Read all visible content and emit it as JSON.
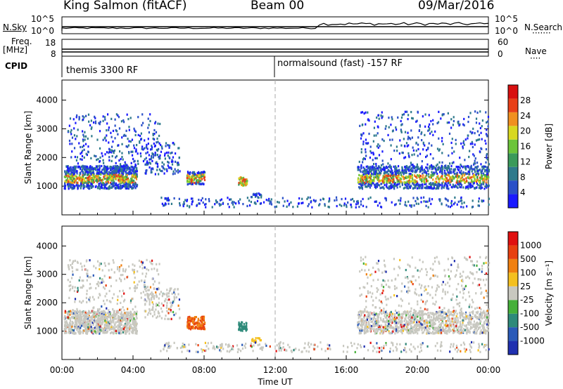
{
  "header": {
    "station": "King Salmon (fitACF)",
    "beam": "Beam 00",
    "date": "09/Mar/2016"
  },
  "top_panels": {
    "nsky_label": "N.Sky",
    "nsky_ticks": [
      "10^5",
      "10^0"
    ],
    "nsearch_label": "N.Search",
    "nsearch_ticks": [
      "10^5",
      "10^0"
    ],
    "freq_label": "Freq.",
    "freq_unit": "[MHz]",
    "freq_ticks": [
      "18",
      "8"
    ],
    "nave_label": "Nave",
    "nave_ticks": [
      "60",
      "0"
    ],
    "cpid_label": "CPID",
    "cpid_segments": [
      {
        "text": "themis 3300 RF",
        "start_hour": 0
      },
      {
        "text": "normalsound (fast) -157 RF",
        "start_hour": 12
      }
    ]
  },
  "chart_data": [
    {
      "type": "heatmap",
      "name": "power",
      "ylabel": "Slant Range [km]",
      "ylim": [
        0,
        4700
      ],
      "yticks": [
        1000,
        2000,
        3000,
        4000
      ],
      "xlim_hours": [
        0,
        24
      ],
      "colorbar_title": "Power [dB]",
      "colorbar_ticks": [
        "4",
        "8",
        "12",
        "16",
        "20",
        "24",
        "28"
      ],
      "colors": [
        "#1a1aff",
        "#2a50c8",
        "#2e7a8c",
        "#3a9a5a",
        "#6cc43a",
        "#d8d820",
        "#f09020",
        "#e84018",
        "#d81010"
      ]
    },
    {
      "type": "heatmap",
      "name": "velocity",
      "ylabel": "Slant Range [km]",
      "ylim": [
        0,
        4700
      ],
      "yticks": [
        1000,
        2000,
        3000,
        4000
      ],
      "xlim_hours": [
        0,
        24
      ],
      "xticks": [
        "00:00",
        "04:00",
        "08:00",
        "12:00",
        "16:00",
        "20:00",
        "00:00"
      ],
      "xlabel": "Time UT",
      "colorbar_title": "Velocity [m s⁻¹]",
      "colorbar_ticks": [
        "1000",
        "500",
        "100",
        "25",
        "-25",
        "-100",
        "-500",
        "-1000"
      ],
      "colors": [
        "#2030b0",
        "#2a5ab8",
        "#2e8a7a",
        "#46b03a",
        "#c8c8c0",
        "#f4c020",
        "#f08010",
        "#e84010",
        "#e01010"
      ]
    }
  ]
}
